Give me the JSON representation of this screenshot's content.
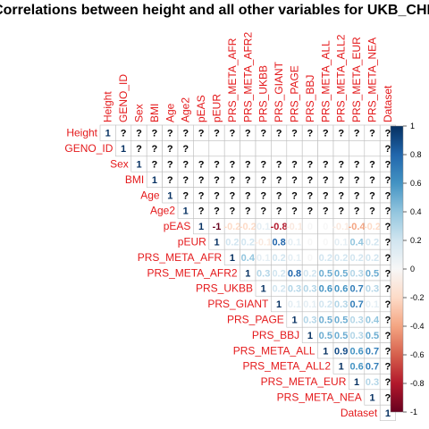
{
  "chart_data": {
    "type": "heatmap",
    "title": "Correlations between height and all other variables for UKB_CHI",
    "variables": [
      "Height",
      "GENO_ID",
      "Sex",
      "BMI",
      "Age",
      "Age2",
      "pEAS",
      "pEUR",
      "PRS_META_AFR",
      "PRS_META_AFR2",
      "PRS_UKBB",
      "PRS_GIANT",
      "PRS_PAGE",
      "PRS_BBJ",
      "PRS_META_ALL",
      "PRS_META_ALL2",
      "PRS_META_EUR",
      "PRS_META_NEA",
      "Dataset"
    ],
    "layout": "upper-triangle",
    "missing_symbol": "?",
    "colorbar": {
      "range": [
        -1,
        1
      ],
      "ticks": [
        "1",
        "0.8",
        "0.6",
        "0.4",
        "0.2",
        "0",
        "-0.2",
        "-0.4",
        "-0.6",
        "-0.8",
        "-1"
      ],
      "colors": [
        "#67001f",
        "#f7f7f7",
        "#053061"
      ]
    },
    "rows": [
      [
        "1",
        "?",
        "?",
        "?",
        "?",
        "?",
        "?",
        "?",
        "?",
        "?",
        "?",
        "?",
        "?",
        "?",
        "?",
        "?",
        "?",
        "?",
        "?"
      ],
      [
        null,
        "1",
        "?",
        "?",
        "?",
        "?",
        "",
        "",
        "",
        "",
        "",
        "",
        "",
        "",
        "",
        "",
        "",
        "",
        "?"
      ],
      [
        null,
        null,
        "1",
        "?",
        "?",
        "?",
        "?",
        "?",
        "?",
        "?",
        "?",
        "?",
        "?",
        "?",
        "?",
        "?",
        "?",
        "?",
        "?"
      ],
      [
        null,
        null,
        null,
        "1",
        "?",
        "?",
        "?",
        "?",
        "?",
        "?",
        "?",
        "?",
        "?",
        "?",
        "?",
        "?",
        "?",
        "?",
        "?"
      ],
      [
        null,
        null,
        null,
        null,
        "1",
        "?",
        "?",
        "?",
        "?",
        "?",
        "?",
        "?",
        "?",
        "?",
        "?",
        "?",
        "?",
        "?",
        "?"
      ],
      [
        null,
        null,
        null,
        null,
        null,
        "1",
        "?",
        "?",
        "?",
        "?",
        "?",
        "?",
        "?",
        "?",
        "?",
        "?",
        "?",
        "?",
        "?"
      ],
      [
        null,
        null,
        null,
        null,
        null,
        null,
        "1",
        "-1",
        "-0.2",
        "-0.2",
        "0.1",
        "-0.8",
        "-0.1",
        "0",
        "0",
        "-0.1",
        "-0.4",
        "-0.2",
        "?"
      ],
      [
        null,
        null,
        null,
        null,
        null,
        null,
        null,
        "1",
        "0.2",
        "0.2",
        "-0.1",
        "0.8",
        "0.1",
        "0",
        "0",
        "0.1",
        "0.4",
        "0.2",
        "?"
      ],
      [
        null,
        null,
        null,
        null,
        null,
        null,
        null,
        null,
        "1",
        "0.4",
        "0.1",
        "0.2",
        "0.1",
        "0",
        "0.2",
        "0.2",
        "0.2",
        "0.2",
        "?"
      ],
      [
        null,
        null,
        null,
        null,
        null,
        null,
        null,
        null,
        null,
        "1",
        "0.3",
        "0.2",
        "0.8",
        "0.2",
        "0.5",
        "0.5",
        "0.3",
        "0.5",
        "?"
      ],
      [
        null,
        null,
        null,
        null,
        null,
        null,
        null,
        null,
        null,
        null,
        "1",
        "0.2",
        "0.3",
        "0.3",
        "0.6",
        "0.6",
        "0.7",
        "0.3",
        "?"
      ],
      [
        null,
        null,
        null,
        null,
        null,
        null,
        null,
        null,
        null,
        null,
        null,
        "1",
        "0.1",
        "0.1",
        "0.2",
        "0.3",
        "0.7",
        "0.1",
        "?"
      ],
      [
        null,
        null,
        null,
        null,
        null,
        null,
        null,
        null,
        null,
        null,
        null,
        null,
        "1",
        "0.3",
        "0.5",
        "0.5",
        "0.3",
        "0.4",
        "?"
      ],
      [
        null,
        null,
        null,
        null,
        null,
        null,
        null,
        null,
        null,
        null,
        null,
        null,
        null,
        "1",
        "0.5",
        "0.5",
        "0.3",
        "0.5",
        "?"
      ],
      [
        null,
        null,
        null,
        null,
        null,
        null,
        null,
        null,
        null,
        null,
        null,
        null,
        null,
        null,
        "1",
        "0.9",
        "0.6",
        "0.7",
        "?"
      ],
      [
        null,
        null,
        null,
        null,
        null,
        null,
        null,
        null,
        null,
        null,
        null,
        null,
        null,
        null,
        null,
        "1",
        "0.6",
        "0.7",
        "?"
      ],
      [
        null,
        null,
        null,
        null,
        null,
        null,
        null,
        null,
        null,
        null,
        null,
        null,
        null,
        null,
        null,
        null,
        "1",
        "0.3",
        "?"
      ],
      [
        null,
        null,
        null,
        null,
        null,
        null,
        null,
        null,
        null,
        null,
        null,
        null,
        null,
        null,
        null,
        null,
        null,
        "1",
        "?"
      ],
      [
        null,
        null,
        null,
        null,
        null,
        null,
        null,
        null,
        null,
        null,
        null,
        null,
        null,
        null,
        null,
        null,
        null,
        null,
        "1"
      ]
    ]
  }
}
